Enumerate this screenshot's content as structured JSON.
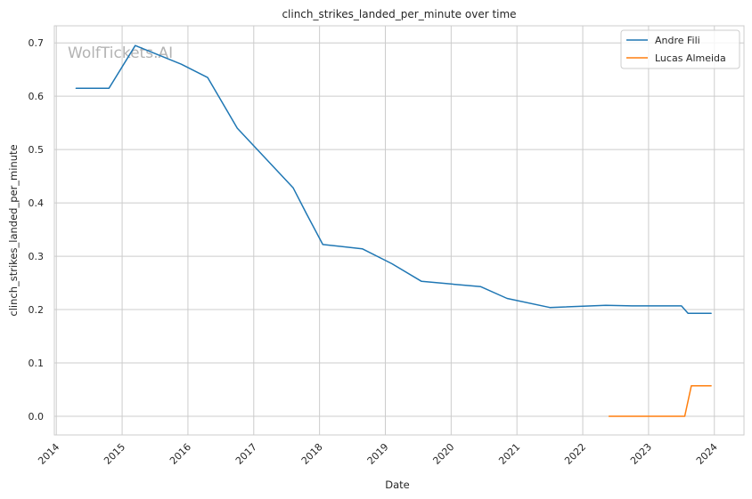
{
  "chart_data": {
    "type": "line",
    "title": "clinch_strikes_landed_per_minute over time",
    "xlabel": "Date",
    "ylabel": "clinch_strikes_landed_per_minute",
    "watermark": "WolfTickets.AI",
    "xlim": [
      2013.97,
      2024.45
    ],
    "ylim": [
      -0.035,
      0.732
    ],
    "x_ticks": [
      2014,
      2015,
      2016,
      2017,
      2018,
      2019,
      2020,
      2021,
      2022,
      2023,
      2024
    ],
    "y_ticks": [
      0.0,
      0.1,
      0.2,
      0.3,
      0.4,
      0.5,
      0.6,
      0.7
    ],
    "grid": true,
    "legend_placement": "top-right",
    "series": [
      {
        "name": "Andre Fili",
        "color": "#1f77b4",
        "x": [
          2014.3,
          2014.8,
          2015.2,
          2015.9,
          2016.3,
          2016.75,
          2017.6,
          2017.8,
          2018.05,
          2018.65,
          2019.1,
          2019.55,
          2020.45,
          2020.85,
          2021.5,
          2022.35,
          2022.75,
          2023.5,
          2023.6,
          2023.95
        ],
        "y": [
          0.615,
          0.615,
          0.695,
          0.66,
          0.635,
          0.54,
          0.428,
          0.38,
          0.322,
          0.314,
          0.286,
          0.253,
          0.243,
          0.221,
          0.204,
          0.208,
          0.207,
          0.207,
          0.193,
          0.193
        ]
      },
      {
        "name": "Lucas Almeida",
        "color": "#ff7f0e",
        "x": [
          2022.4,
          2023.55,
          2023.65,
          2023.95
        ],
        "y": [
          0.0,
          0.0,
          0.057,
          0.057
        ]
      }
    ]
  }
}
